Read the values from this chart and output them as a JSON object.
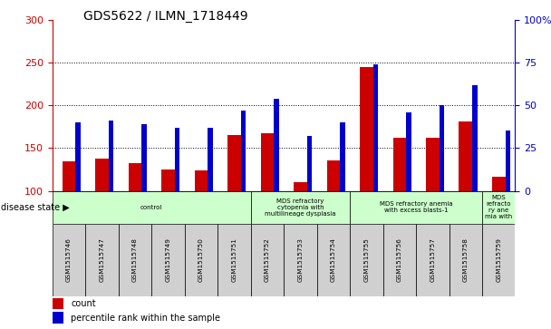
{
  "title": "GDS5622 / ILMN_1718449",
  "samples": [
    "GSM1515746",
    "GSM1515747",
    "GSM1515748",
    "GSM1515749",
    "GSM1515750",
    "GSM1515751",
    "GSM1515752",
    "GSM1515753",
    "GSM1515754",
    "GSM1515755",
    "GSM1515756",
    "GSM1515757",
    "GSM1515758",
    "GSM1515759"
  ],
  "counts": [
    135,
    138,
    132,
    125,
    124,
    165,
    167,
    110,
    136,
    245,
    162,
    162,
    181,
    116
  ],
  "percentiles": [
    40,
    41,
    39,
    37,
    37,
    47,
    54,
    32,
    40,
    74,
    46,
    50,
    62,
    35
  ],
  "ymin": 100,
  "ymax": 300,
  "y2min": 0,
  "y2max": 100,
  "yticks": [
    100,
    150,
    200,
    250,
    300
  ],
  "y2ticks": [
    0,
    25,
    50,
    75,
    100
  ],
  "bar_color_count": "#cc0000",
  "bar_color_percentile": "#0000cc",
  "bar_width": 0.4,
  "perc_bar_width": 0.15,
  "disease_groups": [
    {
      "label": "control",
      "start": 0,
      "end": 6
    },
    {
      "label": "MDS refractory\ncytopenia with\nmultilineage dysplasia",
      "start": 6,
      "end": 9
    },
    {
      "label": "MDS refractory anemia\nwith excess blasts-1",
      "start": 9,
      "end": 13
    },
    {
      "label": "MDS\nrefracto\nry ane\nmia with",
      "start": 13,
      "end": 14
    }
  ],
  "legend_count_label": "count",
  "legend_percentile_label": "percentile rank within the sample",
  "disease_state_label": "disease state"
}
